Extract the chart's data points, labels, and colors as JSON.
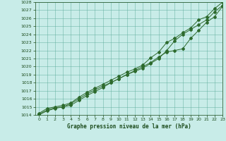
{
  "title": "Graphe pression niveau de la mer (hPa)",
  "x": [
    0,
    1,
    2,
    3,
    4,
    5,
    6,
    7,
    8,
    9,
    10,
    11,
    12,
    13,
    14,
    15,
    16,
    17,
    18,
    19,
    20,
    21,
    22,
    23
  ],
  "y_line1": [
    1014.2,
    1014.8,
    1015.0,
    1015.2,
    1015.5,
    1016.2,
    1016.8,
    1017.3,
    1017.8,
    1018.3,
    1018.8,
    1019.3,
    1019.7,
    1020.2,
    1021.1,
    1021.8,
    1023.0,
    1023.5,
    1024.2,
    1024.8,
    1025.8,
    1026.2,
    1027.2,
    1028.0
  ],
  "y_line2": [
    1014.0,
    1014.5,
    1014.8,
    1015.0,
    1015.2,
    1015.8,
    1016.4,
    1016.9,
    1017.4,
    1018.0,
    1018.5,
    1019.0,
    1019.5,
    1020.0,
    1020.5,
    1021.2,
    1021.8,
    1022.0,
    1022.2,
    1023.5,
    1024.5,
    1025.5,
    1026.2,
    1027.5
  ],
  "y_line3": [
    1014.1,
    1014.6,
    1014.9,
    1015.0,
    1015.4,
    1016.0,
    1016.6,
    1017.1,
    1017.6,
    1018.0,
    1018.5,
    1019.0,
    1019.4,
    1019.8,
    1020.4,
    1021.0,
    1022.0,
    1023.2,
    1024.0,
    1024.6,
    1025.2,
    1025.8,
    1026.8,
    1027.6
  ],
  "line_color": "#2d6a2d",
  "bg_color": "#c8ece8",
  "grid_color": "#5aaa99",
  "text_color": "#1a4a1a",
  "ylim": [
    1014,
    1028
  ],
  "xlim": [
    -0.5,
    23
  ],
  "yticks": [
    1014,
    1015,
    1016,
    1017,
    1018,
    1019,
    1020,
    1021,
    1022,
    1023,
    1024,
    1025,
    1026,
    1027,
    1028
  ],
  "xticks": [
    0,
    1,
    2,
    3,
    4,
    5,
    6,
    7,
    8,
    9,
    10,
    11,
    12,
    13,
    14,
    15,
    16,
    17,
    18,
    19,
    20,
    21,
    22,
    23
  ]
}
